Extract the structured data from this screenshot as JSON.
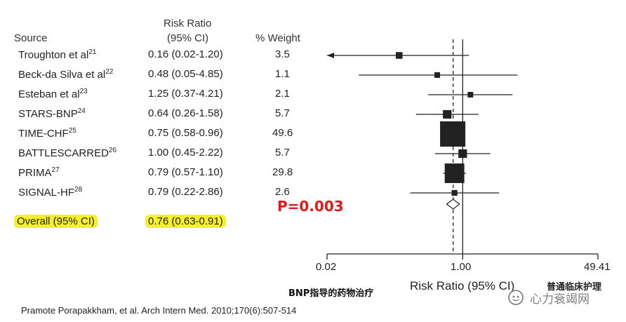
{
  "header": {
    "source": "Source",
    "rr_line1": "Risk Ratio",
    "rr_line2": "(95% CI)",
    "weight": "% Weight"
  },
  "chart_data": {
    "type": "forest",
    "scale": "log",
    "xlim": [
      0.02,
      49.41
    ],
    "xticks": [
      "0.02",
      "1.00",
      "49.41"
    ],
    "xlabel": "Risk Ratio (95% CI)",
    "null_value": 1.0,
    "pooled_line": 0.76,
    "studies": [
      {
        "name": "Troughton et al",
        "ref": "21",
        "rr_text": "0.16 (0.02-1.20)",
        "rr": 0.16,
        "lo": 0.02,
        "hi": 1.2,
        "weight_text": "3.5",
        "weight": 3.5,
        "arrow_left": true
      },
      {
        "name": "Beck-da Silva et al",
        "ref": "22",
        "rr_text": "0.48 (0.05-4.85)",
        "rr": 0.48,
        "lo": 0.05,
        "hi": 4.85,
        "weight_text": "1.1",
        "weight": 1.1
      },
      {
        "name": "Esteban et al",
        "ref": "23",
        "rr_text": "1.25 (0.37-4.21)",
        "rr": 1.25,
        "lo": 0.37,
        "hi": 4.21,
        "weight_text": "2.1",
        "weight": 2.1
      },
      {
        "name": "STARS-BNP",
        "ref": "24",
        "rr_text": "0.64 (0.26-1.58)",
        "rr": 0.64,
        "lo": 0.26,
        "hi": 1.58,
        "weight_text": "5.7",
        "weight": 5.7
      },
      {
        "name": "TIME-CHF",
        "ref": "25",
        "rr_text": "0.75 (0.58-0.96)",
        "rr": 0.75,
        "lo": 0.58,
        "hi": 0.96,
        "weight_text": "49.6",
        "weight": 49.6
      },
      {
        "name": "BATTLESCARRED",
        "ref": "26",
        "rr_text": "1.00 (0.45-2.22)",
        "rr": 1.0,
        "lo": 0.45,
        "hi": 2.22,
        "weight_text": "5.7",
        "weight": 5.7
      },
      {
        "name": "PRIMA",
        "ref": "27",
        "rr_text": "0.79 (0.57-1.10)",
        "rr": 0.79,
        "lo": 0.57,
        "hi": 1.1,
        "weight_text": "29.8",
        "weight": 29.8
      },
      {
        "name": "SIGNAL-HF",
        "ref": "28",
        "rr_text": "0.79 (0.22-2.86)",
        "rr": 0.79,
        "lo": 0.22,
        "hi": 2.86,
        "weight_text": "2.6",
        "weight": 2.6
      }
    ],
    "overall": {
      "label": "Overall (95% CI)",
      "rr_text": "0.76 (0.63-0.91)",
      "rr": 0.76,
      "lo": 0.63,
      "hi": 0.91
    },
    "p_value": "P=0.003",
    "highlight_color": "#f6f02c",
    "p_color": "#e0191b"
  },
  "caption_cn": "BNP指导的药物治疗",
  "citation": "Pramote Porapakkham, et al. Arch Intern Med. 2010;170(6):507-514",
  "watermark_top": "普通临床护理",
  "watermark_main": "心力衰竭网"
}
